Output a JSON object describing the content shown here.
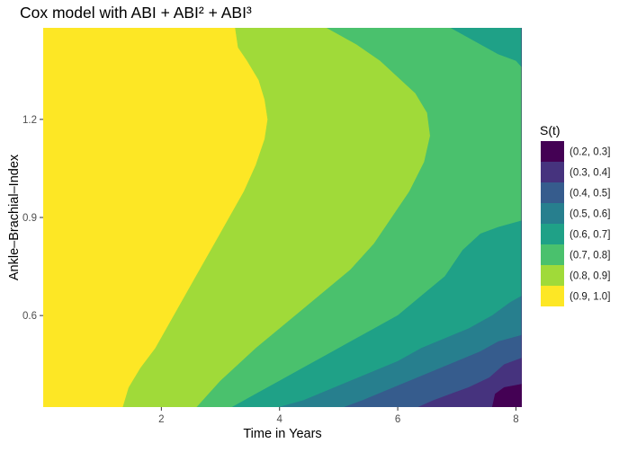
{
  "chart_data": {
    "type": "heatmap",
    "subtype": "filled-contour",
    "title": "Cox model with ABI + ABI² + ABI³",
    "xlabel": "Time in Years",
    "ylabel": "Ankle–Brachial–Index",
    "xlim": [
      0.0,
      8.1
    ],
    "ylim": [
      0.32,
      1.48
    ],
    "x_ticks": [
      2,
      4,
      6,
      8
    ],
    "x_tick_labels": [
      "2",
      "4",
      "6",
      "8"
    ],
    "y_ticks": [
      0.6,
      0.9,
      1.2
    ],
    "y_tick_labels": [
      "0.6",
      "0.9",
      "1.2"
    ],
    "grid": false,
    "legend": {
      "title": "S(t)",
      "placement": "right",
      "entries": [
        {
          "label": "(0.2, 0.3]",
          "color": "#440154"
        },
        {
          "label": "(0.3, 0.4]",
          "color": "#46337E"
        },
        {
          "label": "(0.4, 0.5]",
          "color": "#365C8D"
        },
        {
          "label": "(0.5, 0.6]",
          "color": "#277F8E"
        },
        {
          "label": "(0.6, 0.7]",
          "color": "#1FA187"
        },
        {
          "label": "(0.7, 0.8]",
          "color": "#4AC16D"
        },
        {
          "label": "(0.8, 0.9]",
          "color": "#A0DA39"
        },
        {
          "label": "(0.9, 1.0]",
          "color": "#FDE725"
        }
      ]
    },
    "bands": [
      {
        "name": "(0.2, 0.3]",
        "color": "#440154",
        "boundary": [
          [
            7.6,
            0.32
          ],
          [
            7.65,
            0.36
          ],
          [
            7.8,
            0.38
          ],
          [
            8.1,
            0.39
          ]
        ]
      },
      {
        "name": "(0.3, 0.4]",
        "color": "#46337E",
        "boundary": [
          [
            6.35,
            0.32
          ],
          [
            6.6,
            0.34
          ],
          [
            6.9,
            0.36
          ],
          [
            7.2,
            0.38
          ],
          [
            7.55,
            0.41
          ],
          [
            7.8,
            0.45
          ],
          [
            8.1,
            0.47
          ]
        ]
      },
      {
        "name": "(0.4, 0.5]",
        "color": "#365C8D",
        "boundary": [
          [
            5.1,
            0.32
          ],
          [
            5.4,
            0.34
          ],
          [
            5.8,
            0.37
          ],
          [
            6.2,
            0.4
          ],
          [
            6.6,
            0.43
          ],
          [
            7.0,
            0.46
          ],
          [
            7.4,
            0.49
          ],
          [
            7.7,
            0.52
          ],
          [
            8.1,
            0.54
          ]
        ]
      },
      {
        "name": "(0.5, 0.6]",
        "color": "#277F8E",
        "boundary": [
          [
            4.0,
            0.32
          ],
          [
            4.4,
            0.34
          ],
          [
            4.8,
            0.37
          ],
          [
            5.2,
            0.4
          ],
          [
            5.6,
            0.43
          ],
          [
            6.0,
            0.46
          ],
          [
            6.4,
            0.5
          ],
          [
            6.8,
            0.53
          ],
          [
            7.2,
            0.56
          ],
          [
            7.6,
            0.6
          ],
          [
            7.9,
            0.64
          ],
          [
            8.1,
            0.66
          ]
        ]
      },
      {
        "name": "(0.6, 0.7]",
        "color": "#1FA187",
        "boundary": [
          [
            3.2,
            0.32
          ],
          [
            3.6,
            0.36
          ],
          [
            4.0,
            0.4
          ],
          [
            4.4,
            0.44
          ],
          [
            4.8,
            0.48
          ],
          [
            5.2,
            0.52
          ],
          [
            5.6,
            0.56
          ],
          [
            6.0,
            0.6
          ],
          [
            6.4,
            0.66
          ],
          [
            6.8,
            0.72
          ],
          [
            7.1,
            0.8
          ],
          [
            7.4,
            0.85
          ],
          [
            7.7,
            0.87
          ],
          [
            8.1,
            0.89
          ],
          [
            8.1,
            1.36
          ],
          [
            8.0,
            1.38
          ],
          [
            7.7,
            1.4
          ],
          [
            7.4,
            1.43
          ],
          [
            7.1,
            1.46
          ],
          [
            6.9,
            1.48
          ]
        ]
      },
      {
        "name": "(0.7, 0.8]",
        "color": "#4AC16D",
        "boundary": [
          [
            2.6,
            0.32
          ],
          [
            2.8,
            0.36
          ],
          [
            3.0,
            0.4
          ],
          [
            3.3,
            0.45
          ],
          [
            3.6,
            0.5
          ],
          [
            4.0,
            0.56
          ],
          [
            4.4,
            0.62
          ],
          [
            4.8,
            0.68
          ],
          [
            5.2,
            0.74
          ],
          [
            5.6,
            0.82
          ],
          [
            5.9,
            0.9
          ],
          [
            6.2,
            0.98
          ],
          [
            6.45,
            1.07
          ],
          [
            6.55,
            1.15
          ],
          [
            6.5,
            1.22
          ],
          [
            6.3,
            1.28
          ],
          [
            6.0,
            1.33
          ],
          [
            5.7,
            1.38
          ],
          [
            5.3,
            1.43
          ],
          [
            4.8,
            1.48
          ]
        ]
      },
      {
        "name": "(0.8, 0.9]",
        "color": "#A0DA39",
        "boundary": [
          [
            1.35,
            0.32
          ],
          [
            1.45,
            0.38
          ],
          [
            1.65,
            0.44
          ],
          [
            1.9,
            0.5
          ],
          [
            2.15,
            0.58
          ],
          [
            2.4,
            0.66
          ],
          [
            2.65,
            0.74
          ],
          [
            2.9,
            0.82
          ],
          [
            3.15,
            0.9
          ],
          [
            3.4,
            0.98
          ],
          [
            3.6,
            1.06
          ],
          [
            3.75,
            1.14
          ],
          [
            3.8,
            1.2
          ],
          [
            3.75,
            1.26
          ],
          [
            3.65,
            1.32
          ],
          [
            3.45,
            1.38
          ],
          [
            3.3,
            1.42
          ],
          [
            3.25,
            1.48
          ]
        ]
      }
    ]
  }
}
